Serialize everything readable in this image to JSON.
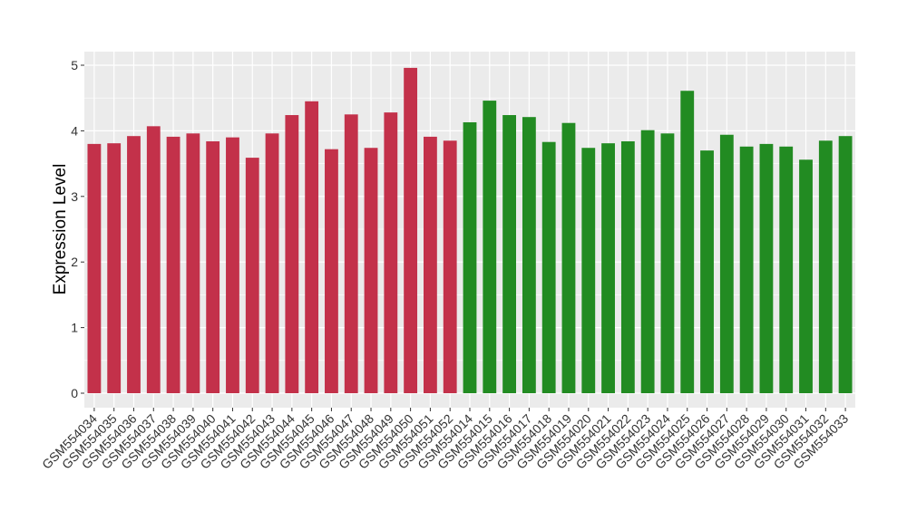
{
  "chart_data": {
    "type": "bar",
    "title": "",
    "xlabel": "",
    "ylabel": "Expression Level",
    "ylim": [
      -0.25,
      5.2
    ],
    "yticks": [
      0,
      1,
      2,
      3,
      4,
      5
    ],
    "grid": true,
    "legend": "none",
    "colors": {
      "group1": "#C3314A",
      "group2": "#228B22",
      "panel": "#EBEBEB",
      "grid": "#FFFFFF"
    },
    "categories": [
      "GSM554034",
      "GSM554035",
      "GSM554036",
      "GSM554037",
      "GSM554038",
      "GSM554039",
      "GSM554040",
      "GSM554041",
      "GSM554042",
      "GSM554043",
      "GSM554044",
      "GSM554045",
      "GSM554046",
      "GSM554047",
      "GSM554048",
      "GSM554049",
      "GSM554050",
      "GSM554051",
      "GSM554052",
      "GSM554014",
      "GSM554015",
      "GSM554016",
      "GSM554017",
      "GSM554018",
      "GSM554019",
      "GSM554020",
      "GSM554021",
      "GSM554022",
      "GSM554023",
      "GSM554024",
      "GSM554025",
      "GSM554026",
      "GSM554027",
      "GSM554028",
      "GSM554029",
      "GSM554030",
      "GSM554031",
      "GSM554032",
      "GSM554033"
    ],
    "values": [
      3.8,
      3.81,
      3.92,
      4.07,
      3.91,
      3.96,
      3.84,
      3.9,
      3.59,
      3.96,
      4.24,
      4.45,
      3.72,
      4.25,
      3.74,
      4.28,
      4.96,
      3.91,
      3.85,
      4.13,
      4.46,
      4.24,
      4.21,
      3.83,
      4.12,
      3.74,
      3.81,
      3.84,
      4.01,
      3.96,
      4.61,
      3.7,
      3.94,
      3.76,
      3.8,
      3.76,
      3.56,
      3.85,
      3.92
    ],
    "groups": [
      "group1",
      "group1",
      "group1",
      "group1",
      "group1",
      "group1",
      "group1",
      "group1",
      "group1",
      "group1",
      "group1",
      "group1",
      "group1",
      "group1",
      "group1",
      "group1",
      "group1",
      "group1",
      "group1",
      "group2",
      "group2",
      "group2",
      "group2",
      "group2",
      "group2",
      "group2",
      "group2",
      "group2",
      "group2",
      "group2",
      "group2",
      "group2",
      "group2",
      "group2",
      "group2",
      "group2",
      "group2",
      "group2",
      "group2"
    ]
  }
}
